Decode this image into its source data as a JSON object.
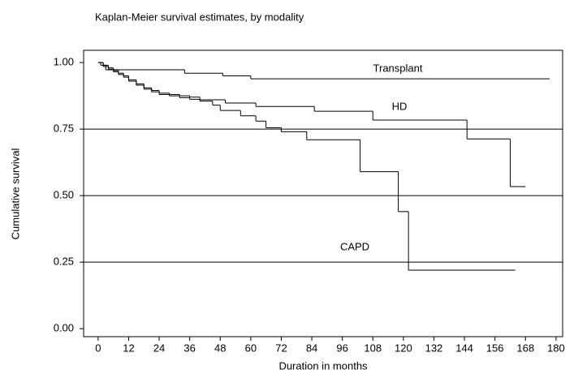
{
  "chart_data": {
    "type": "step",
    "subtitle": "Kaplan-Meier survival estimates, by modality",
    "xlabel": "Duration in months",
    "ylabel": "Cumulative survival",
    "xlim": [
      -5.7,
      182.6
    ],
    "ylim": [
      -0.03,
      1.046
    ],
    "xticks": [
      0,
      12,
      24,
      36,
      48,
      60,
      72,
      84,
      96,
      108,
      120,
      132,
      144,
      156,
      168,
      180
    ],
    "yticks": [
      {
        "value": 0,
        "label": "0.00"
      },
      0.25,
      {
        "value": 0.5,
        "label": "0.50"
      },
      0.75,
      {
        "value": 1,
        "label": "1.00"
      }
    ],
    "hlines": [
      0.25,
      0.5,
      0.75
    ],
    "color": "#000000",
    "series": [
      {
        "name": "Transplant",
        "x": [
          0,
          1,
          3,
          34,
          49,
          60,
          177.5
        ],
        "values": [
          1.0,
          0.99,
          0.973,
          0.96,
          0.95,
          0.939,
          0.939
        ]
      },
      {
        "name": "HD",
        "x": [
          0,
          2,
          4,
          6,
          8,
          10,
          12,
          15,
          18,
          21,
          24,
          28,
          32,
          36,
          40,
          50,
          62,
          85,
          108,
          145,
          162,
          168
        ],
        "values": [
          1.0,
          0.99,
          0.98,
          0.97,
          0.96,
          0.95,
          0.935,
          0.92,
          0.905,
          0.895,
          0.885,
          0.88,
          0.875,
          0.87,
          0.86,
          0.848,
          0.835,
          0.817,
          0.784,
          0.713,
          0.534,
          0.534
        ]
      },
      {
        "name": "CAPD",
        "x": [
          0,
          2,
          4,
          6,
          8,
          10,
          12,
          15,
          18,
          21,
          24,
          28,
          32,
          36,
          40,
          45,
          48,
          56,
          62,
          66,
          72,
          82,
          103,
          118,
          122,
          164
        ],
        "values": [
          1.0,
          0.985,
          0.975,
          0.965,
          0.955,
          0.945,
          0.93,
          0.915,
          0.9,
          0.89,
          0.88,
          0.875,
          0.868,
          0.862,
          0.855,
          0.84,
          0.82,
          0.8,
          0.78,
          0.755,
          0.74,
          0.71,
          0.59,
          0.44,
          0.22,
          0.22
        ]
      }
    ]
  }
}
